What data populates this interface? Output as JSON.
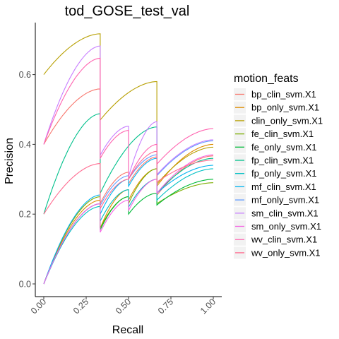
{
  "chart_data": {
    "type": "line",
    "title": "tod_GOSE_test_val",
    "xlabel": "Recall",
    "ylabel": "Precision",
    "xlim": [
      0,
      1
    ],
    "ylim": [
      0,
      0.7
    ],
    "x_ticks": [
      "0.00",
      "0.25",
      "0.50",
      "0.75",
      "1.00"
    ],
    "y_ticks": [
      "0.0",
      "0.2",
      "0.4",
      "0.6"
    ],
    "legend_title": "motion_feats",
    "legend_position": "right",
    "grid": false,
    "series": [
      {
        "name": "bp_clin_svm.X1",
        "color": "#F8766D",
        "points": [
          [
            0,
            0.4
          ],
          [
            0.333,
            0.559
          ],
          [
            0.333,
            0.231
          ],
          [
            0.5,
            0.32
          ],
          [
            0.5,
            0.287
          ],
          [
            0.667,
            0.364
          ],
          [
            0.667,
            0.254
          ],
          [
            1.0,
            0.367
          ]
        ]
      },
      {
        "name": "bp_only_svm.X1",
        "color": "#DE8C00",
        "points": [
          [
            0,
            0.0
          ],
          [
            0.333,
            0.24
          ],
          [
            0.333,
            0.16
          ],
          [
            0.5,
            0.27
          ],
          [
            0.5,
            0.24
          ],
          [
            0.667,
            0.33
          ],
          [
            0.667,
            0.28
          ],
          [
            1.0,
            0.4
          ]
        ]
      },
      {
        "name": "clin_only_svm.X1",
        "color": "#B79F00",
        "points": [
          [
            0,
            0.6
          ],
          [
            0.333,
            0.717
          ],
          [
            0.333,
            0.47
          ],
          [
            0.667,
            0.58
          ],
          [
            0.667,
            0.286
          ],
          [
            1.0,
            0.392
          ]
        ]
      },
      {
        "name": "fe_clin_svm.X1",
        "color": "#7CAE00",
        "points": [
          [
            0,
            0.0
          ],
          [
            0.333,
            0.25
          ],
          [
            0.333,
            0.16
          ],
          [
            0.5,
            0.25
          ],
          [
            0.5,
            0.23
          ],
          [
            0.667,
            0.33
          ],
          [
            0.667,
            0.23
          ],
          [
            1.0,
            0.29
          ]
        ]
      },
      {
        "name": "fe_only_svm.X1",
        "color": "#00BA38",
        "points": [
          [
            0,
            0.0
          ],
          [
            0.333,
            0.23
          ],
          [
            0.333,
            0.155
          ],
          [
            0.5,
            0.25
          ],
          [
            0.5,
            0.2
          ],
          [
            0.667,
            0.26
          ],
          [
            0.667,
            0.226
          ],
          [
            1.0,
            0.3
          ]
        ]
      },
      {
        "name": "fp_clin_svm.X1",
        "color": "#00C08B",
        "points": [
          [
            0,
            0.2
          ],
          [
            0.333,
            0.488
          ],
          [
            0.333,
            0.26
          ],
          [
            0.667,
            0.45
          ],
          [
            0.667,
            0.26
          ],
          [
            1.0,
            0.36
          ]
        ]
      },
      {
        "name": "fp_only_svm.X1",
        "color": "#00BFC4",
        "points": [
          [
            0,
            0.0
          ],
          [
            0.333,
            0.222
          ],
          [
            0.333,
            0.18
          ],
          [
            0.5,
            0.27
          ],
          [
            0.5,
            0.22
          ],
          [
            0.667,
            0.3
          ],
          [
            0.667,
            0.24
          ],
          [
            1.0,
            0.33
          ]
        ]
      },
      {
        "name": "mf_clin_svm.X1",
        "color": "#00B4F0",
        "points": [
          [
            0,
            0.0
          ],
          [
            0.333,
            0.255
          ],
          [
            0.333,
            0.2
          ],
          [
            0.5,
            0.3
          ],
          [
            0.5,
            0.28
          ],
          [
            0.667,
            0.36
          ],
          [
            0.667,
            0.26
          ],
          [
            1.0,
            0.34
          ]
        ]
      },
      {
        "name": "mf_only_svm.X1",
        "color": "#619CFF",
        "points": [
          [
            0,
            0.0
          ],
          [
            0.333,
            0.23
          ],
          [
            0.333,
            0.225
          ],
          [
            0.5,
            0.31
          ],
          [
            0.5,
            0.3
          ],
          [
            0.667,
            0.37
          ],
          [
            0.667,
            0.31
          ],
          [
            1.0,
            0.41
          ]
        ]
      },
      {
        "name": "sm_clin_svm.X1",
        "color": "#C77CFF",
        "points": [
          [
            0,
            0.4
          ],
          [
            0.333,
            0.682
          ],
          [
            0.333,
            0.369
          ],
          [
            0.5,
            0.452
          ],
          [
            0.5,
            0.307
          ],
          [
            0.667,
            0.465
          ],
          [
            0.667,
            0.313
          ],
          [
            1.0,
            0.413
          ]
        ]
      },
      {
        "name": "sm_only_svm.X1",
        "color": "#F564E3",
        "points": [
          [
            0,
            0.0
          ],
          [
            0.333,
            0.23
          ],
          [
            0.333,
            0.148
          ],
          [
            0.5,
            0.24
          ],
          [
            0.5,
            0.21
          ],
          [
            0.667,
            0.3
          ],
          [
            0.667,
            0.26
          ],
          [
            1.0,
            0.37
          ]
        ]
      },
      {
        "name": "wv_clin_svm.X1",
        "color": "#FF64B0",
        "points": [
          [
            0,
            0.4
          ],
          [
            0.333,
            0.647
          ],
          [
            0.333,
            0.36
          ],
          [
            0.5,
            0.44
          ],
          [
            0.5,
            0.3
          ],
          [
            0.667,
            0.4
          ],
          [
            0.667,
            0.343
          ],
          [
            1.0,
            0.445
          ]
        ]
      },
      {
        "name": "wv_only_svm.X1",
        "color": "#FF6C91",
        "points": [
          [
            0,
            0.2
          ],
          [
            0.333,
            0.345
          ],
          [
            0.333,
            0.216
          ],
          [
            0.5,
            0.3
          ],
          [
            0.5,
            0.3
          ],
          [
            0.667,
            0.38
          ],
          [
            0.667,
            0.292
          ],
          [
            1.0,
            0.355
          ]
        ]
      }
    ]
  }
}
